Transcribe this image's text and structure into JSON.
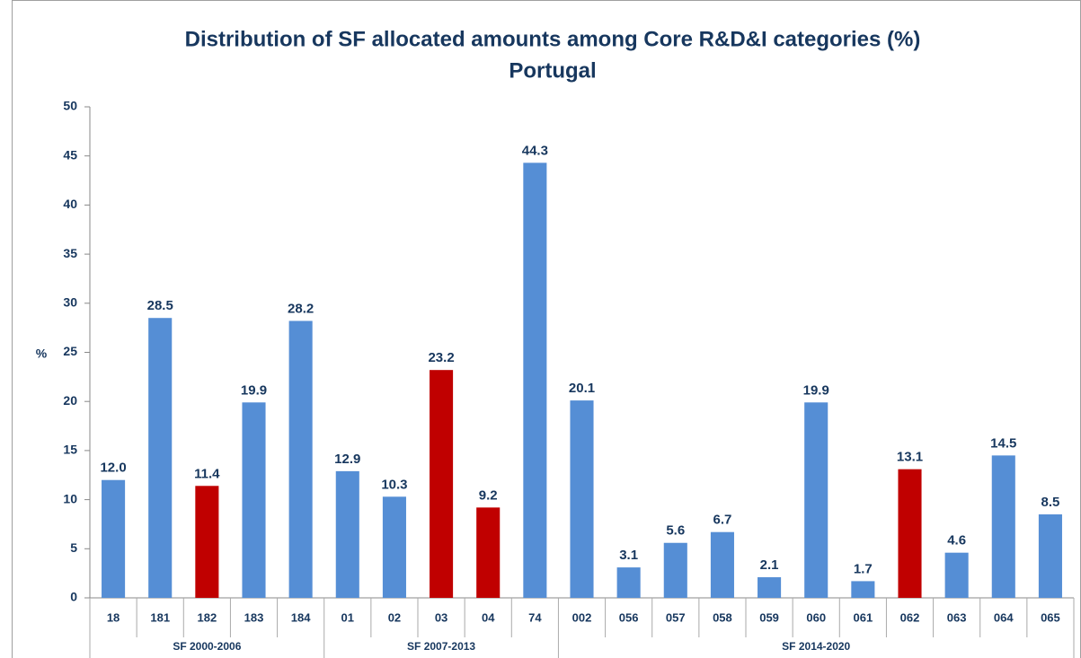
{
  "chart_data": {
    "type": "bar",
    "title": "Distribution of SF allocated amounts among Core R&D&I categories (%)",
    "subtitle": "Portugal",
    "y_label": "%",
    "ylim": [
      0,
      50
    ],
    "yticks": [
      0,
      5,
      10,
      15,
      20,
      25,
      30,
      35,
      40,
      45,
      50
    ],
    "groups": [
      {
        "name": "SF 2000-2006",
        "categories": [
          "18",
          "181",
          "182",
          "183",
          "184"
        ],
        "values": [
          12.0,
          28.5,
          11.4,
          19.9,
          28.2
        ],
        "value_labels": [
          "12.0",
          "28.5",
          "11.4",
          "19.9",
          "28.2"
        ],
        "colors": [
          "#558ed5",
          "#558ed5",
          "#c00000",
          "#558ed5",
          "#558ed5"
        ]
      },
      {
        "name": "SF 2007-2013",
        "categories": [
          "01",
          "02",
          "03",
          "04",
          "74"
        ],
        "values": [
          12.9,
          10.3,
          23.2,
          9.2,
          44.3
        ],
        "value_labels": [
          "12.9",
          "10.3",
          "23.2",
          "9.2",
          "44.3"
        ],
        "colors": [
          "#558ed5",
          "#558ed5",
          "#c00000",
          "#c00000",
          "#558ed5"
        ]
      },
      {
        "name": "SF 2014-2020",
        "categories": [
          "002",
          "056",
          "057",
          "058",
          "059",
          "060",
          "061",
          "062",
          "063",
          "064",
          "065"
        ],
        "values": [
          20.1,
          3.1,
          5.6,
          6.7,
          2.1,
          19.9,
          1.7,
          13.1,
          4.6,
          14.5,
          8.5
        ],
        "value_labels": [
          "20.1",
          "3.1",
          "5.6",
          "6.7",
          "2.1",
          "19.9",
          "1.7",
          "13.1",
          "4.6",
          "14.5",
          "8.5"
        ],
        "colors": [
          "#558ed5",
          "#558ed5",
          "#558ed5",
          "#558ed5",
          "#558ed5",
          "#558ed5",
          "#558ed5",
          "#c00000",
          "#558ed5",
          "#558ed5",
          "#558ed5"
        ]
      }
    ]
  }
}
